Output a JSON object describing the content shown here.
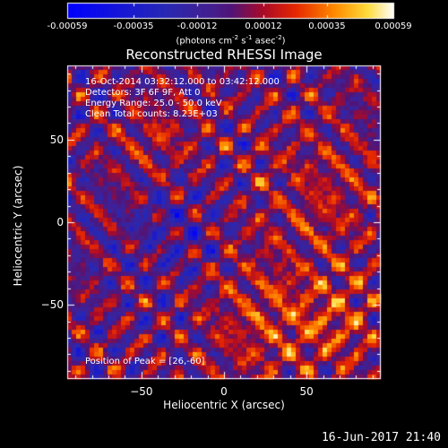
{
  "chart_data": {
    "type": "heatmap",
    "title": "Reconstructed RHESSI Image",
    "xlabel": "Heliocentric X (arcsec)",
    "ylabel": "Heliocentric Y (arcsec)",
    "xlim": [
      -95,
      95
    ],
    "ylim": [
      -95,
      95
    ],
    "x_ticks": [
      -50,
      0,
      50
    ],
    "y_ticks": [
      -50,
      0,
      50
    ],
    "colorbar": {
      "unit_prefix": "(photons cm",
      "ticks": [
        "-0.00059",
        "-0.00035",
        "-0.00012",
        "0.00012",
        "0.00035",
        "0.00059"
      ],
      "range": [
        -0.00059,
        0.00059
      ]
    },
    "annotations": [
      "16-Oct-2014 03:32:12.000 to 03:42:12.000",
      "Detectors: 3F 6F 9F, Att 0",
      "Energy Range: 25.0 - 50.0 keV",
      "Clean     Total counts: 8.23E+03"
    ],
    "peak_label": "Position of Peak = [26,-60]",
    "peak_position": [
      26,
      -60
    ]
  },
  "footer": {
    "timestamp": "16-Jun-2017 21:40"
  }
}
